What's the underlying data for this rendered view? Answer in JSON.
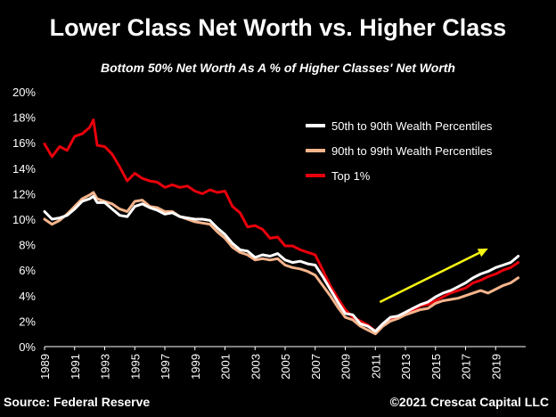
{
  "header": {
    "title": "Lower Class Net Worth vs. Higher Class",
    "subtitle": "Bottom 50% Net Worth As A % of Higher Classes' Net Worth"
  },
  "footer": {
    "source": "Source: Federal Reserve",
    "copyright": "©2021 Crescat Capital LLC"
  },
  "chart_data": {
    "type": "line",
    "xlabel": "",
    "ylabel": "",
    "x_range": [
      1989,
      2021
    ],
    "ylim": [
      0,
      20
    ],
    "y_ticks": [
      "0%",
      "2%",
      "4%",
      "6%",
      "8%",
      "10%",
      "12%",
      "14%",
      "16%",
      "18%",
      "20%"
    ],
    "x_ticks": [
      "1989",
      "1991",
      "1993",
      "1995",
      "1997",
      "1999",
      "2001",
      "2003",
      "2005",
      "2007",
      "2009",
      "2011",
      "2013",
      "2015",
      "2017",
      "2019"
    ],
    "grid": false,
    "legend_position": "top-right",
    "colors": {
      "background": "#000000",
      "text": "#ffffff",
      "arrow": "#f5f514"
    },
    "series": [
      {
        "name": "50th to 90th Wealth Percentiles",
        "color": "#ffffff",
        "x": [
          1989,
          1989.5,
          1990,
          1990.5,
          1991,
          1991.5,
          1992,
          1992.25,
          1992.5,
          1993,
          1993.5,
          1994,
          1994.5,
          1995,
          1995.5,
          1996,
          1996.5,
          1997,
          1997.5,
          1998,
          1998.5,
          1999,
          1999.5,
          2000,
          2000.5,
          2001,
          2001.5,
          2002,
          2002.5,
          2003,
          2003.5,
          2004,
          2004.5,
          2005,
          2005.5,
          2006,
          2006.5,
          2007,
          2007.5,
          2008,
          2008.5,
          2009,
          2009.5,
          2010,
          2010.5,
          2011,
          2011.5,
          2012,
          2012.5,
          2013,
          2013.5,
          2014,
          2014.5,
          2015,
          2015.5,
          2016,
          2016.5,
          2017,
          2017.5,
          2018,
          2018.5,
          2019,
          2019.5,
          2020,
          2020.5
        ],
        "values": [
          10.6,
          10.0,
          10.1,
          10.3,
          10.8,
          11.4,
          11.6,
          11.8,
          11.3,
          11.3,
          10.8,
          10.3,
          10.2,
          11.0,
          11.2,
          10.9,
          10.7,
          10.4,
          10.5,
          10.2,
          10.1,
          10.0,
          10.0,
          9.9,
          9.3,
          8.8,
          8.1,
          7.6,
          7.5,
          7.0,
          7.2,
          7.1,
          7.3,
          6.8,
          6.6,
          6.7,
          6.5,
          6.4,
          5.5,
          4.5,
          3.5,
          2.6,
          2.5,
          1.8,
          1.6,
          1.2,
          1.8,
          2.3,
          2.4,
          2.7,
          3.0,
          3.3,
          3.5,
          3.9,
          4.2,
          4.4,
          4.7,
          5.0,
          5.4,
          5.7,
          5.9,
          6.2,
          6.4,
          6.6,
          7.1
        ]
      },
      {
        "name": "90th to 99th Wealth Percentiles",
        "color": "#f5b48c",
        "x": [
          1989,
          1989.5,
          1990,
          1990.5,
          1991,
          1991.5,
          1992,
          1992.25,
          1992.5,
          1993,
          1993.5,
          1994,
          1994.5,
          1995,
          1995.5,
          1996,
          1996.5,
          1997,
          1997.5,
          1998,
          1998.5,
          1999,
          1999.5,
          2000,
          2000.5,
          2001,
          2001.5,
          2002,
          2002.5,
          2003,
          2003.5,
          2004,
          2004.5,
          2005,
          2005.5,
          2006,
          2006.5,
          2007,
          2007.5,
          2008,
          2008.5,
          2009,
          2009.5,
          2010,
          2010.5,
          2011,
          2011.5,
          2012,
          2012.5,
          2013,
          2013.5,
          2014,
          2014.5,
          2015,
          2015.5,
          2016,
          2016.5,
          2017,
          2017.5,
          2018,
          2018.5,
          2019,
          2019.5,
          2020,
          2020.5
        ],
        "values": [
          10.0,
          9.6,
          9.9,
          10.4,
          11.0,
          11.6,
          11.9,
          12.1,
          11.6,
          11.4,
          11.2,
          10.8,
          10.6,
          11.4,
          11.5,
          11.0,
          10.9,
          10.6,
          10.6,
          10.2,
          10.0,
          9.8,
          9.7,
          9.6,
          9.0,
          8.5,
          7.8,
          7.4,
          7.2,
          6.8,
          6.9,
          6.8,
          6.9,
          6.4,
          6.2,
          6.1,
          5.9,
          5.6,
          4.8,
          4.0,
          3.1,
          2.3,
          2.1,
          1.6,
          1.3,
          1.0,
          1.6,
          2.0,
          2.2,
          2.5,
          2.7,
          2.9,
          3.0,
          3.4,
          3.6,
          3.7,
          3.8,
          4.0,
          4.2,
          4.4,
          4.2,
          4.5,
          4.8,
          5.0,
          5.4
        ]
      },
      {
        "name": "Top 1%",
        "color": "#e8000b",
        "x": [
          1989,
          1989.5,
          1990,
          1990.5,
          1991,
          1991.5,
          1992,
          1992.25,
          1992.5,
          1993,
          1993.5,
          1994,
          1994.5,
          1995,
          1995.5,
          1996,
          1996.5,
          1997,
          1997.5,
          1998,
          1998.5,
          1999,
          1999.5,
          2000,
          2000.5,
          2001,
          2001.5,
          2002,
          2002.5,
          2003,
          2003.5,
          2004,
          2004.5,
          2005,
          2005.5,
          2006,
          2006.5,
          2007,
          2007.5,
          2008,
          2008.5,
          2009,
          2009.5,
          2010,
          2010.5,
          2011,
          2011.5,
          2012,
          2012.5,
          2013,
          2013.5,
          2014,
          2014.5,
          2015,
          2015.5,
          2016,
          2016.5,
          2017,
          2017.5,
          2018,
          2018.5,
          2019,
          2019.5,
          2020,
          2020.5
        ],
        "values": [
          15.9,
          14.9,
          15.7,
          15.4,
          16.5,
          16.7,
          17.2,
          17.8,
          15.8,
          15.7,
          15.1,
          14.1,
          13.0,
          13.6,
          13.2,
          13.0,
          12.9,
          12.5,
          12.7,
          12.5,
          12.6,
          12.2,
          12.0,
          12.3,
          12.1,
          12.2,
          11.0,
          10.5,
          9.4,
          9.5,
          9.2,
          8.5,
          8.6,
          7.9,
          7.9,
          7.6,
          7.4,
          7.2,
          6.0,
          4.8,
          3.8,
          2.9,
          2.3,
          2.0,
          1.7,
          1.2,
          1.8,
          2.1,
          2.3,
          2.5,
          2.8,
          3.2,
          3.3,
          3.6,
          3.9,
          4.2,
          4.4,
          4.6,
          5.0,
          5.2,
          5.5,
          5.7,
          6.0,
          6.2,
          6.6
        ]
      }
    ],
    "trend_arrow": {
      "from": {
        "x": 2011.3,
        "y": 3.5
      },
      "to": {
        "x": 2018.5,
        "y": 7.7
      }
    }
  }
}
